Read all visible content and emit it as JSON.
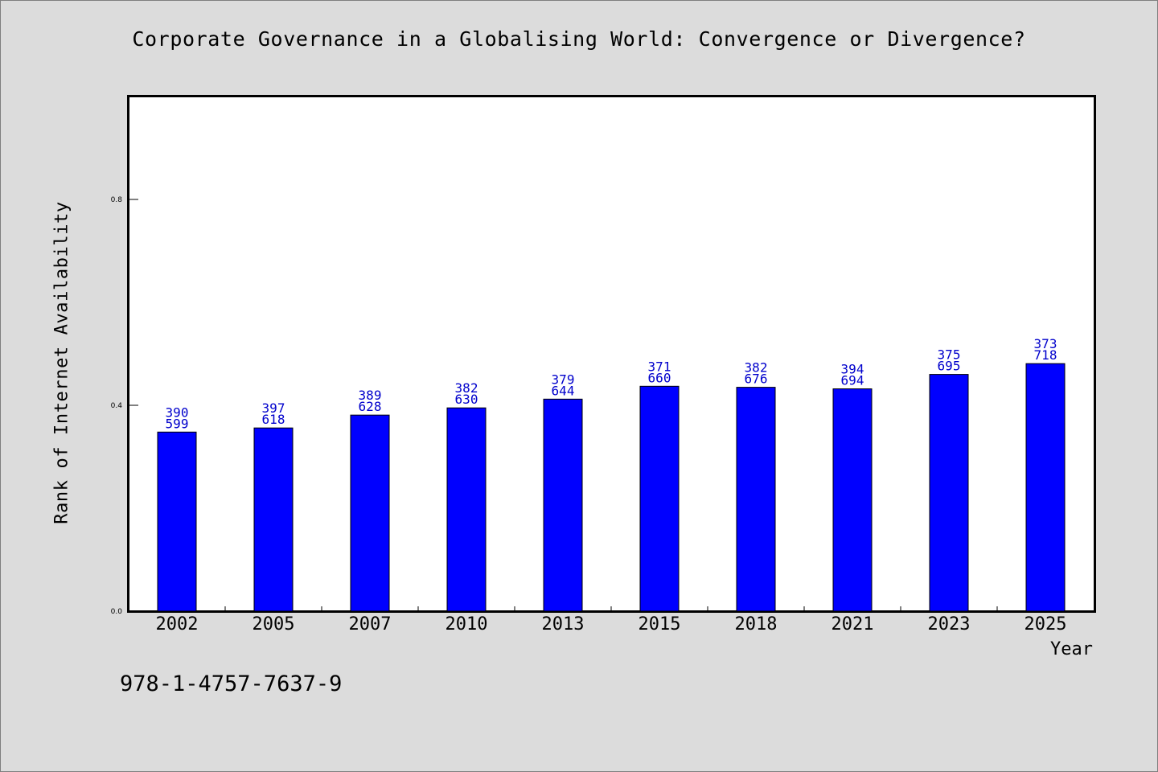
{
  "chart_data": {
    "type": "bar",
    "title": "Corporate Governance in a Globalising World: Convergence or Divergence?",
    "xlabel": "Year",
    "ylabel": "Rank of Internet Availability",
    "categories": [
      "2002",
      "2005",
      "2007",
      "2010",
      "2013",
      "2015",
      "2018",
      "2021",
      "2023",
      "2025"
    ],
    "values": [
      0.348,
      0.356,
      0.381,
      0.395,
      0.412,
      0.437,
      0.435,
      0.432,
      0.46,
      0.481
    ],
    "bar_labels": [
      [
        "390",
        "599"
      ],
      [
        "397",
        "618"
      ],
      [
        "389",
        "628"
      ],
      [
        "382",
        "630"
      ],
      [
        "379",
        "644"
      ],
      [
        "371",
        "660"
      ],
      [
        "382",
        "676"
      ],
      [
        "394",
        "694"
      ],
      [
        "375",
        "695"
      ],
      [
        "373",
        "718"
      ]
    ],
    "yticks": [
      "0.0",
      "0.4",
      "0.8"
    ],
    "ylim": [
      0,
      1.0
    ],
    "grid": false,
    "legend": "none",
    "bar_color": "#0000ff",
    "label_color": "#0000cc"
  },
  "footer": {
    "isbn": "978-1-4757-7637-9"
  }
}
